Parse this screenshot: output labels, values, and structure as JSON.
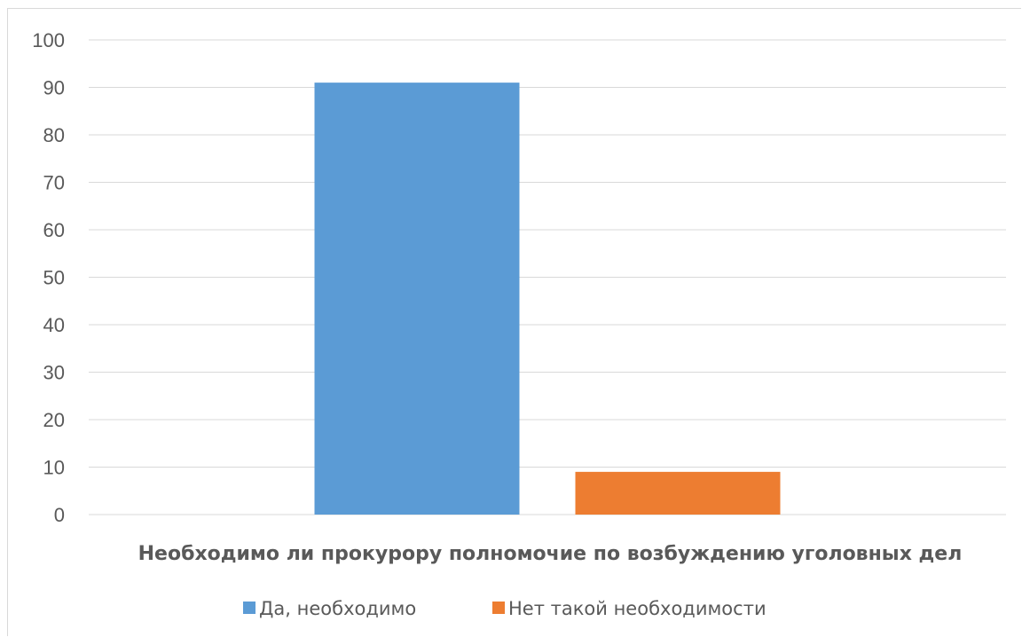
{
  "chart_data": {
    "type": "bar",
    "categories": [
      "Необходимо ли прокурору полномочие по возбуждению уголовных дел"
    ],
    "series": [
      {
        "name": "Да, необходимо",
        "values": [
          91
        ],
        "color": "#5b9bd5"
      },
      {
        "name": "Нет такой необходимости",
        "values": [
          9
        ],
        "color": "#ed7d31"
      }
    ],
    "title": "",
    "xlabel": "Необходимо ли прокурору полномочие по возбуждению уголовных дел",
    "ylabel": "",
    "ylim": [
      0,
      100
    ],
    "yticks": [
      "0",
      "10",
      "20",
      "30",
      "40",
      "50",
      "60",
      "70",
      "80",
      "90",
      "100"
    ],
    "grid": true,
    "legend": "bottom"
  }
}
